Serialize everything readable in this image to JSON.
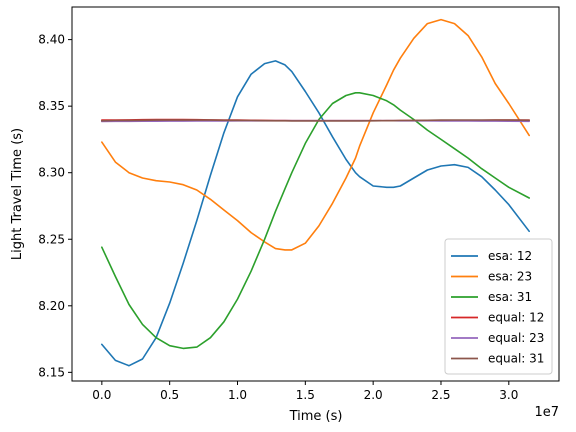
{
  "chart_data": {
    "type": "line",
    "title": "",
    "xlabel": "Time (s)",
    "ylabel": "Light Travel Time (s)",
    "x_offset_label": "1e7",
    "xlim": [
      -2200000,
      33700000
    ],
    "ylim": [
      8.1435,
      8.4245
    ],
    "xticks": [
      {
        "value": 0,
        "label": "0.0"
      },
      {
        "value": 5000000,
        "label": "0.5"
      },
      {
        "value": 10000000,
        "label": "1.0"
      },
      {
        "value": 15000000,
        "label": "1.5"
      },
      {
        "value": 20000000,
        "label": "2.0"
      },
      {
        "value": 25000000,
        "label": "2.5"
      },
      {
        "value": 30000000,
        "label": "3.0"
      }
    ],
    "yticks": [
      {
        "value": 8.15,
        "label": "8.15"
      },
      {
        "value": 8.2,
        "label": "8.20"
      },
      {
        "value": 8.25,
        "label": "8.25"
      },
      {
        "value": 8.3,
        "label": "8.30"
      },
      {
        "value": 8.35,
        "label": "8.35"
      },
      {
        "value": 8.4,
        "label": "8.40"
      }
    ],
    "grid": false,
    "legend_position": "lower right",
    "x": [
      0,
      1000000,
      2000000,
      3000000,
      4000000,
      5000000,
      6000000,
      7000000,
      8000000,
      9000000,
      10000000,
      11000000,
      12000000,
      12800000,
      13500000,
      14000000,
      15000000,
      16000000,
      17000000,
      18000000,
      18700000,
      19000000,
      20000000,
      21000000,
      21500000,
      22000000,
      23000000,
      24000000,
      25000000,
      26000000,
      27000000,
      28000000,
      29000000,
      30000000,
      31500000
    ],
    "series": [
      {
        "name": "esa: 12",
        "color": "#1f77b4",
        "values": [
          8.171,
          8.159,
          8.155,
          8.16,
          8.176,
          8.202,
          8.232,
          8.264,
          8.298,
          8.33,
          8.357,
          8.374,
          8.382,
          8.384,
          8.381,
          8.376,
          8.361,
          8.345,
          8.327,
          8.31,
          8.3,
          8.297,
          8.29,
          8.289,
          8.289,
          8.29,
          8.296,
          8.302,
          8.305,
          8.306,
          8.304,
          8.297,
          8.287,
          8.276,
          8.256
        ]
      },
      {
        "name": "esa: 23",
        "color": "#ff7f0e",
        "values": [
          8.323,
          8.308,
          8.3,
          8.296,
          8.294,
          8.293,
          8.291,
          8.287,
          8.28,
          8.272,
          8.264,
          8.255,
          8.248,
          8.243,
          8.242,
          8.242,
          8.247,
          8.26,
          8.277,
          8.296,
          8.311,
          8.32,
          8.345,
          8.366,
          8.377,
          8.386,
          8.401,
          8.412,
          8.415,
          8.412,
          8.403,
          8.387,
          8.367,
          8.352,
          8.328
        ]
      },
      {
        "name": "esa: 31",
        "color": "#2ca02c",
        "values": [
          8.244,
          8.222,
          8.201,
          8.186,
          8.176,
          8.17,
          8.168,
          8.169,
          8.176,
          8.188,
          8.205,
          8.226,
          8.25,
          8.271,
          8.288,
          8.3,
          8.322,
          8.34,
          8.352,
          8.358,
          8.36,
          8.36,
          8.358,
          8.354,
          8.351,
          8.347,
          8.34,
          8.332,
          8.325,
          8.318,
          8.311,
          8.303,
          8.296,
          8.289,
          8.281
        ]
      },
      {
        "name": "equal: 12",
        "color": "#d62728",
        "values": [
          8.3395,
          8.3396,
          8.3397,
          8.3398,
          8.3399,
          8.3399,
          8.3399,
          8.3398,
          8.3397,
          8.3396,
          8.3395,
          8.3394,
          8.3393,
          8.3392,
          8.3392,
          8.3391,
          8.3391,
          8.3391,
          8.3391,
          8.3391,
          8.3391,
          8.3391,
          8.3391,
          8.3391,
          8.3391,
          8.3392,
          8.3392,
          8.3393,
          8.3393,
          8.3394,
          8.3394,
          8.3394,
          8.3395,
          8.3395,
          8.3395
        ]
      },
      {
        "name": "equal: 23",
        "color": "#9467bd",
        "values": [
          8.3385,
          8.3386,
          8.3386,
          8.3387,
          8.3387,
          8.3388,
          8.3388,
          8.3389,
          8.3389,
          8.3389,
          8.339,
          8.339,
          8.339,
          8.3391,
          8.3391,
          8.3391,
          8.3391,
          8.3391,
          8.3391,
          8.3391,
          8.3391,
          8.3391,
          8.3391,
          8.3391,
          8.3391,
          8.339,
          8.339,
          8.339,
          8.3389,
          8.3389,
          8.3389,
          8.3388,
          8.3388,
          8.3387,
          8.3386
        ]
      },
      {
        "name": "equal: 31",
        "color": "#8c564b",
        "values": [
          8.339,
          8.3392,
          8.3393,
          8.3394,
          8.3395,
          8.3395,
          8.3395,
          8.3395,
          8.3395,
          8.3394,
          8.3393,
          8.3392,
          8.3391,
          8.339,
          8.339,
          8.3389,
          8.3389,
          8.3389,
          8.3389,
          8.3389,
          8.3389,
          8.3389,
          8.339,
          8.3391,
          8.3391,
          8.3392,
          8.3393,
          8.3394,
          8.3395,
          8.3396,
          8.3396,
          8.3396,
          8.3396,
          8.3395,
          8.3394
        ]
      }
    ]
  }
}
